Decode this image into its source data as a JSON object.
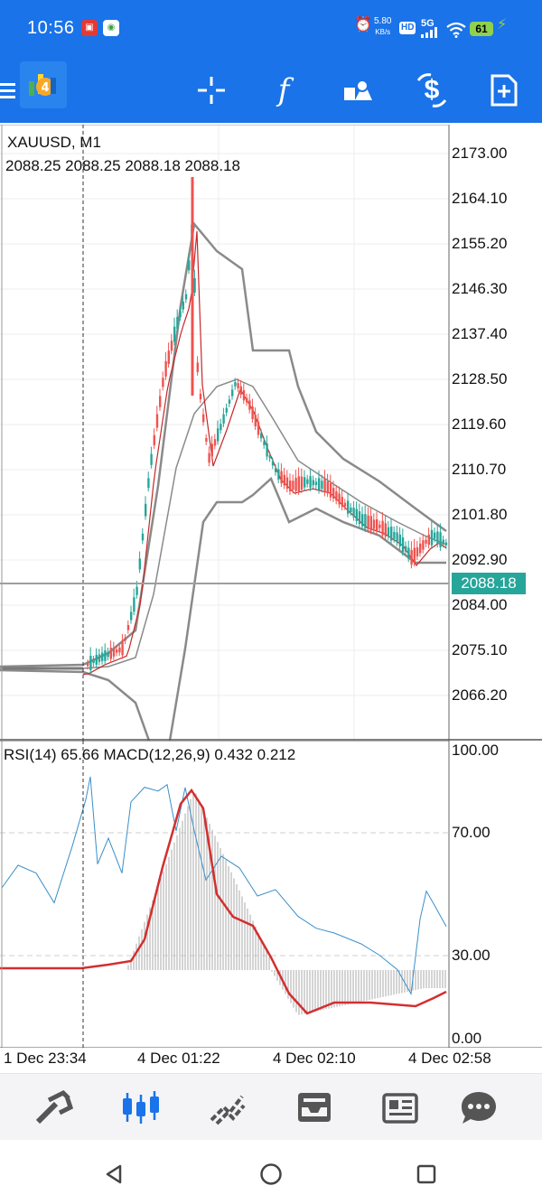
{
  "status_bar": {
    "time": "10:56",
    "net_speed_value": "5.80",
    "net_speed_unit": "KB/s",
    "hd_badge": "HD",
    "network": "5G",
    "battery": "61"
  },
  "toolbar": {
    "icons": [
      "menu-icon",
      "app-logo",
      "crosshair-icon",
      "function-icon",
      "objects-icon",
      "trade-icon",
      "new-order-icon"
    ]
  },
  "chart": {
    "symbol_line": "XAUUSD, M1",
    "ohlc_line": "2088.25 2088.25 2088.18 2088.18",
    "price_axis": [
      "2173.00",
      "2164.10",
      "2155.20",
      "2146.30",
      "2137.40",
      "2128.50",
      "2119.60",
      "2110.70",
      "2101.80",
      "2092.90",
      "2084.00",
      "2075.10",
      "2066.20"
    ],
    "current_price": "2088.18",
    "colors": {
      "bull": "#26a69a",
      "bear": "#ef5350",
      "bands": "#8a8a8a",
      "ma": "#c62828",
      "tag": "#26a69a"
    }
  },
  "indicator": {
    "label": "RSI(14) 65.66 MACD(12,26,9) 0.432 0.212",
    "axis": [
      "100.00",
      "70.00",
      "30.00",
      "0.00"
    ],
    "colors": {
      "rsi": "#3b8fc9",
      "signal": "#d32f2f",
      "histogram": "#b8b8b8"
    }
  },
  "time_axis": [
    "1 Dec 23:34",
    "4 Dec 01:22",
    "4 Dec 02:10",
    "4 Dec 02:58"
  ],
  "bottom_nav": {
    "items": [
      "quotes-icon",
      "chart-icon",
      "trade-icon",
      "history-icon",
      "news-icon",
      "chat-icon"
    ],
    "active": "chart-icon",
    "accent": "#1a73e8"
  },
  "system_nav": [
    "back-icon",
    "home-icon",
    "recents-icon"
  ]
}
